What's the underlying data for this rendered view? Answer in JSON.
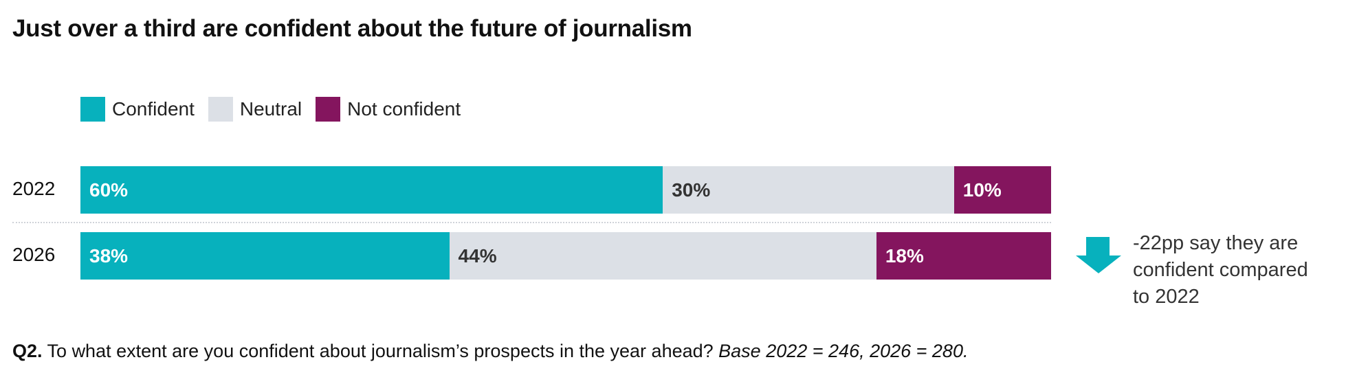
{
  "chart_data": {
    "type": "bar",
    "orientation": "horizontal-stacked",
    "title": "Just over a third are confident about the future of journalism",
    "categories": [
      "2022",
      "2026"
    ],
    "series": [
      {
        "name": "Confident",
        "color": "#07B1BD",
        "label_color": "#ffffff",
        "values": [
          60,
          38
        ],
        "labels": [
          "60%",
          "38%"
        ]
      },
      {
        "name": "Neutral",
        "color": "#DCE0E6",
        "label_color": "#333333",
        "values": [
          30,
          44
        ],
        "labels": [
          "30%",
          "44%"
        ]
      },
      {
        "name": "Not confident",
        "color": "#84155E",
        "label_color": "#ffffff",
        "values": [
          10,
          18
        ],
        "labels": [
          "10%",
          "18%"
        ]
      }
    ],
    "legend_position": "top-left",
    "annotation": {
      "icon": "arrow-down-icon",
      "color": "#07B1BD",
      "lines": [
        "-22pp say they are",
        "confident compared",
        "to 2022"
      ]
    }
  },
  "footer": {
    "q": "Q2.",
    "question": " To what extent are you confident about journalism’s prospects in the year ahead? ",
    "base": "Base 2022 = 246, 2026 = 280."
  }
}
